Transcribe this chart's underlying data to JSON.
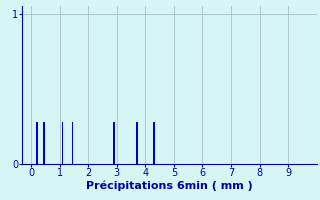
{
  "xlabel": "Précipitations 6min ( mm )",
  "bar_positions": [
    0.2,
    0.45,
    1.1,
    1.45,
    2.9,
    3.7,
    4.3
  ],
  "bar_heights": [
    0.28,
    0.28,
    0.28,
    0.28,
    0.28,
    0.28,
    0.28
  ],
  "bar_color": "#0000cc",
  "bar_width": 0.06,
  "xlim": [
    -0.3,
    10.0
  ],
  "ylim": [
    0,
    1.05
  ],
  "yticks": [
    0,
    1
  ],
  "xticks": [
    0,
    1,
    2,
    3,
    4,
    5,
    6,
    7,
    8,
    9
  ],
  "bg_color": "#d6f5f5",
  "grid_color": "#a0b8b8",
  "tick_color": "#0000aa",
  "label_color": "#0000aa",
  "xlabel_fontsize": 8,
  "tick_fontsize": 7
}
